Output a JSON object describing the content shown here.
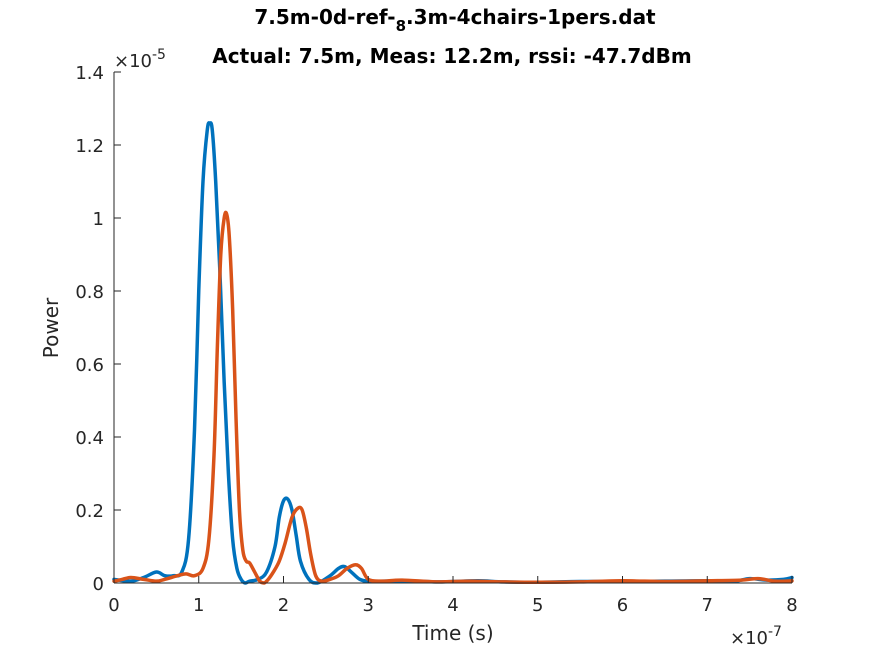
{
  "chart_data": {
    "type": "line",
    "title_parts": [
      "7.5m-0d-ref-",
      "8",
      ".3m-4chairs-1pers.dat"
    ],
    "subtitle": "Actual: 7.5m, Meas: 12.2m, rssi: -47.7dBm",
    "xlabel": "Time (s)",
    "ylabel": "Power",
    "xlim": [
      0,
      8e-07
    ],
    "ylim": [
      0,
      1.4e-05
    ],
    "x_exponent_label": "×10",
    "x_exponent_power": "-7",
    "y_exponent_label": "×10",
    "y_exponent_power": "-5",
    "x_ticks": [
      {
        "value": 0,
        "label": "0"
      },
      {
        "value": 1e-07,
        "label": "1"
      },
      {
        "value": 2e-07,
        "label": "2"
      },
      {
        "value": 3e-07,
        "label": "3"
      },
      {
        "value": 4e-07,
        "label": "4"
      },
      {
        "value": 5e-07,
        "label": "5"
      },
      {
        "value": 6e-07,
        "label": "6"
      },
      {
        "value": 7e-07,
        "label": "7"
      },
      {
        "value": 8e-07,
        "label": "8"
      }
    ],
    "y_ticks": [
      {
        "value": 0,
        "label": "0"
      },
      {
        "value": 2e-06,
        "label": "0.2"
      },
      {
        "value": 4e-06,
        "label": "0.4"
      },
      {
        "value": 6e-06,
        "label": "0.6"
      },
      {
        "value": 8e-06,
        "label": "0.8"
      },
      {
        "value": 1e-05,
        "label": "1"
      },
      {
        "value": 1.2e-05,
        "label": "1.2"
      },
      {
        "value": 1.4e-05,
        "label": "1.4"
      }
    ],
    "grid": false,
    "series": [
      {
        "color": "#0072BD",
        "x": [
          0,
          2e-08,
          3.5e-08,
          5e-08,
          6e-08,
          7e-08,
          8e-08,
          8.8e-08,
          9.5e-08,
          1e-07,
          1.05e-07,
          1.1e-07,
          1.13e-07,
          1.16e-07,
          1.2e-07,
          1.25e-07,
          1.3e-07,
          1.35e-07,
          1.4e-07,
          1.45e-07,
          1.5e-07,
          1.55e-07,
          1.6e-07,
          1.7e-07,
          1.8e-07,
          1.9e-07,
          1.95e-07,
          2e-07,
          2.05e-07,
          2.1e-07,
          2.15e-07,
          2.2e-07,
          2.3e-07,
          2.4e-07,
          2.55e-07,
          2.65e-07,
          2.72e-07,
          2.8e-07,
          2.9e-07,
          3e-07,
          3.2e-07,
          3.5e-07,
          3.8e-07,
          4e-07,
          4.3e-07,
          4.6e-07,
          5e-07,
          5.5e-07,
          6e-07,
          6.5e-07,
          7e-07,
          7.3e-07,
          7.5e-07,
          7.7e-07,
          7.9e-07,
          8e-07
        ],
        "y": [
          1e-07,
          5e-08,
          1.5e-07,
          3e-07,
          2e-07,
          2e-07,
          3e-07,
          1.2e-06,
          4.2e-06,
          8e-06,
          1.1e-05,
          1.24e-05,
          1.26e-05,
          1.24e-05,
          1.1e-05,
          8.5e-06,
          5.5e-06,
          3e-06,
          1.2e-06,
          4e-07,
          1e-07,
          0.0,
          5e-08,
          1e-07,
          3e-07,
          1e-06,
          1.8e-06,
          2.25e-06,
          2.3e-06,
          2e-06,
          1.3e-06,
          6e-07,
          1e-07,
          0.0,
          2e-07,
          4e-07,
          4.5e-07,
          3e-07,
          1e-07,
          5e-08,
          5e-08,
          5e-08,
          3e-08,
          4e-08,
          6e-08,
          3e-08,
          2e-08,
          4e-08,
          4e-08,
          5e-08,
          6e-08,
          4e-08,
          1.2e-07,
          8e-08,
          1e-07,
          1.5e-07
        ]
      },
      {
        "color": "#D95319",
        "x": [
          0,
          1e-08,
          2e-08,
          3.5e-08,
          5e-08,
          6e-08,
          7.5e-08,
          8.5e-08,
          9.5e-08,
          1.05e-07,
          1.12e-07,
          1.18e-07,
          1.22e-07,
          1.26e-07,
          1.3e-07,
          1.33e-07,
          1.36e-07,
          1.4e-07,
          1.44e-07,
          1.48e-07,
          1.52e-07,
          1.56e-07,
          1.6e-07,
          1.66e-07,
          1.72e-07,
          1.77e-07,
          1.82e-07,
          1.88e-07,
          1.95e-07,
          2.02e-07,
          2.1e-07,
          2.17e-07,
          2.22e-07,
          2.27e-07,
          2.32e-07,
          2.38e-07,
          2.45e-07,
          2.55e-07,
          2.65e-07,
          2.75e-07,
          2.85e-07,
          2.92e-07,
          3e-07,
          3.15e-07,
          3.4e-07,
          3.8e-07,
          4.2e-07,
          4.6e-07,
          5e-07,
          5.5e-07,
          6e-07,
          6.5e-07,
          7e-07,
          7.4e-07,
          7.6e-07,
          7.8e-07,
          8e-07
        ],
        "y": [
          5e-08,
          1e-07,
          1.5e-07,
          1e-07,
          5e-08,
          1e-07,
          2e-07,
          2.5e-07,
          2e-07,
          4e-07,
          1.2e-06,
          3.5e-06,
          6.5e-06,
          9e-06,
          1e-05,
          1.01e-05,
          9.5e-06,
          7.5e-06,
          4.5e-06,
          2e-06,
          9e-07,
          6e-07,
          5.5e-07,
          3e-07,
          5e-08,
          0.0,
          1e-07,
          3e-07,
          6e-07,
          1.1e-06,
          1.8e-06,
          2.05e-06,
          2e-06,
          1.5e-06,
          8e-07,
          2e-07,
          5e-08,
          1e-07,
          2e-07,
          4e-07,
          5e-07,
          4e-07,
          1e-07,
          5e-08,
          8e-08,
          3e-08,
          5e-08,
          3e-08,
          2e-08,
          3e-08,
          6e-08,
          4e-08,
          6e-08,
          8e-08,
          1.2e-07,
          5e-08,
          6e-08
        ]
      }
    ]
  }
}
